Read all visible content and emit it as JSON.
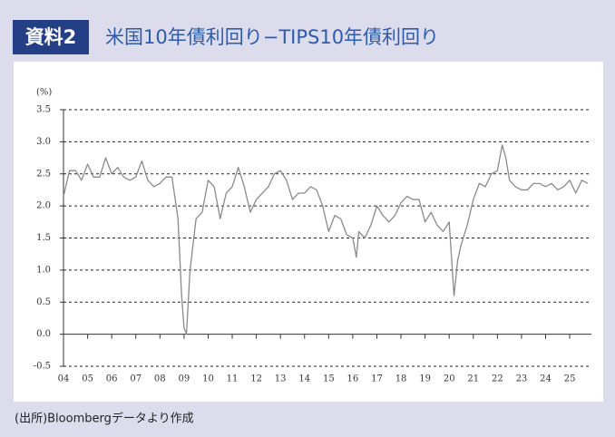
{
  "header": {
    "badge": "資料2"
  },
  "chart_data": {
    "type": "line",
    "title": "米国10年債利回り−TIPS10年債利回り",
    "y_label": "(%)",
    "source": "(出所)Bloombergデータより作成",
    "color": "#8a8a8a",
    "grid": true,
    "x": [
      2004.0,
      2004.25,
      2004.5,
      2004.75,
      2005.0,
      2005.25,
      2005.5,
      2005.75,
      2006.0,
      2006.25,
      2006.5,
      2006.75,
      2007.0,
      2007.25,
      2007.5,
      2007.75,
      2008.0,
      2008.25,
      2008.5,
      2008.75,
      2008.9,
      2009.0,
      2009.1,
      2009.25,
      2009.5,
      2009.75,
      2010.0,
      2010.25,
      2010.5,
      2010.75,
      2011.0,
      2011.25,
      2011.5,
      2011.75,
      2012.0,
      2012.25,
      2012.5,
      2012.75,
      2013.0,
      2013.25,
      2013.5,
      2013.75,
      2014.0,
      2014.25,
      2014.5,
      2014.75,
      2015.0,
      2015.25,
      2015.5,
      2015.75,
      2016.0,
      2016.15,
      2016.25,
      2016.5,
      2016.75,
      2017.0,
      2017.25,
      2017.5,
      2017.75,
      2018.0,
      2018.25,
      2018.5,
      2018.75,
      2019.0,
      2019.25,
      2019.5,
      2019.75,
      2020.0,
      2020.2,
      2020.35,
      2020.5,
      2020.75,
      2021.0,
      2021.25,
      2021.5,
      2021.75,
      2022.0,
      2022.2,
      2022.35,
      2022.5,
      2022.75,
      2023.0,
      2023.25,
      2023.5,
      2023.75,
      2024.0,
      2024.25,
      2024.5,
      2024.75,
      2025.0,
      2025.25,
      2025.5,
      2025.75
    ],
    "values": [
      2.15,
      2.55,
      2.55,
      2.4,
      2.65,
      2.45,
      2.45,
      2.75,
      2.5,
      2.6,
      2.45,
      2.4,
      2.45,
      2.7,
      2.4,
      2.3,
      2.35,
      2.45,
      2.45,
      1.8,
      0.6,
      0.1,
      0.0,
      1.0,
      1.8,
      1.9,
      2.4,
      2.3,
      1.8,
      2.2,
      2.3,
      2.6,
      2.3,
      1.9,
      2.1,
      2.2,
      2.3,
      2.5,
      2.55,
      2.4,
      2.1,
      2.2,
      2.2,
      2.3,
      2.25,
      2.0,
      1.6,
      1.85,
      1.8,
      1.55,
      1.5,
      1.2,
      1.6,
      1.5,
      1.7,
      2.0,
      1.85,
      1.75,
      1.85,
      2.05,
      2.15,
      2.1,
      2.1,
      1.75,
      1.9,
      1.7,
      1.6,
      1.75,
      0.6,
      1.15,
      1.4,
      1.7,
      2.1,
      2.35,
      2.3,
      2.5,
      2.55,
      2.95,
      2.75,
      2.4,
      2.3,
      2.25,
      2.25,
      2.35,
      2.35,
      2.3,
      2.35,
      2.25,
      2.3,
      2.4,
      2.2,
      2.4,
      2.35
    ],
    "xlim": [
      2004,
      2025.9
    ],
    "xticks": [
      {
        "value": 2004,
        "label": "04"
      },
      {
        "value": 2005,
        "label": "05"
      },
      {
        "value": 2006,
        "label": "06"
      },
      {
        "value": 2007,
        "label": "07"
      },
      {
        "value": 2008,
        "label": "08"
      },
      {
        "value": 2009,
        "label": "09"
      },
      {
        "value": 2010,
        "label": "10"
      },
      {
        "value": 2011,
        "label": "11"
      },
      {
        "value": 2012,
        "label": "12"
      },
      {
        "value": 2013,
        "label": "13"
      },
      {
        "value": 2014,
        "label": "14"
      },
      {
        "value": 2015,
        "label": "15"
      },
      {
        "value": 2016,
        "label": "16"
      },
      {
        "value": 2017,
        "label": "17"
      },
      {
        "value": 2018,
        "label": "18"
      },
      {
        "value": 2019,
        "label": "19"
      },
      {
        "value": 2020,
        "label": "20"
      },
      {
        "value": 2021,
        "label": "21"
      },
      {
        "value": 2022,
        "label": "22"
      },
      {
        "value": 2023,
        "label": "23"
      },
      {
        "value": 2024,
        "label": "24"
      },
      {
        "value": 2025,
        "label": "25"
      }
    ],
    "ylim": [
      -0.5,
      3.5
    ],
    "yticks": [
      3.5,
      {
        "value": 3,
        "label": "3.0"
      },
      2.5,
      {
        "value": 2,
        "label": "2.0"
      },
      1.5,
      {
        "value": 1,
        "label": "1.0"
      },
      0.5,
      {
        "value": 0,
        "label": "0.0"
      },
      -0.5
    ]
  }
}
